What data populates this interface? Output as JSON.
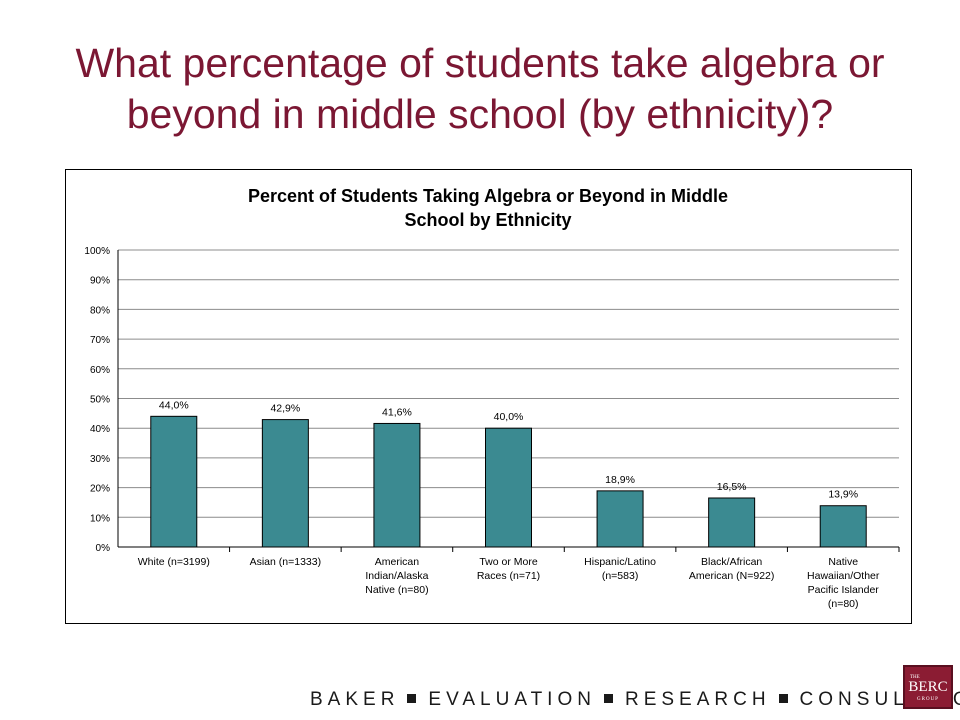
{
  "slide": {
    "title_line1": "What percentage of students take algebra or",
    "title_line2": "beyond in middle school (by ethnicity)?"
  },
  "footer": {
    "words": [
      "BAKER",
      "EVALUATION",
      "RESEARCH",
      "CONSULTING"
    ]
  },
  "logo": {
    "the": "THE",
    "name": "BERC",
    "group": "GROUP"
  },
  "colors": {
    "title": "#7b1733",
    "bar": "#3b8a91",
    "logo": "#8b1c33"
  },
  "chart_data": {
    "type": "bar",
    "title_lines": [
      "Percent of Students Taking Algebra or Beyond in Middle",
      "School by Ethnicity"
    ],
    "categories": [
      [
        "White (n=3199)"
      ],
      [
        "Asian (n=1333)"
      ],
      [
        "American",
        "Indian/Alaska",
        "Native (n=80)"
      ],
      [
        "Two or More",
        "Races (n=71)"
      ],
      [
        "Hispanic/Latino",
        "(n=583)"
      ],
      [
        "Black/African",
        "American (N=922)"
      ],
      [
        "Native",
        "Hawaiian/Other",
        "Pacific Islander",
        "(n=80)"
      ]
    ],
    "values": [
      44.0,
      42.9,
      41.6,
      40.0,
      18.9,
      16.5,
      13.9
    ],
    "value_labels": [
      "44,0%",
      "42,9%",
      "41,6%",
      "40,0%",
      "18,9%",
      "16,5%",
      "13,9%"
    ],
    "y_ticks": [
      "0%",
      "10%",
      "20%",
      "30%",
      "40%",
      "50%",
      "60%",
      "70%",
      "80%",
      "90%",
      "100%"
    ],
    "ylim": [
      0,
      100
    ],
    "xlabel": "",
    "ylabel": "",
    "grid": true,
    "legend": "none"
  }
}
